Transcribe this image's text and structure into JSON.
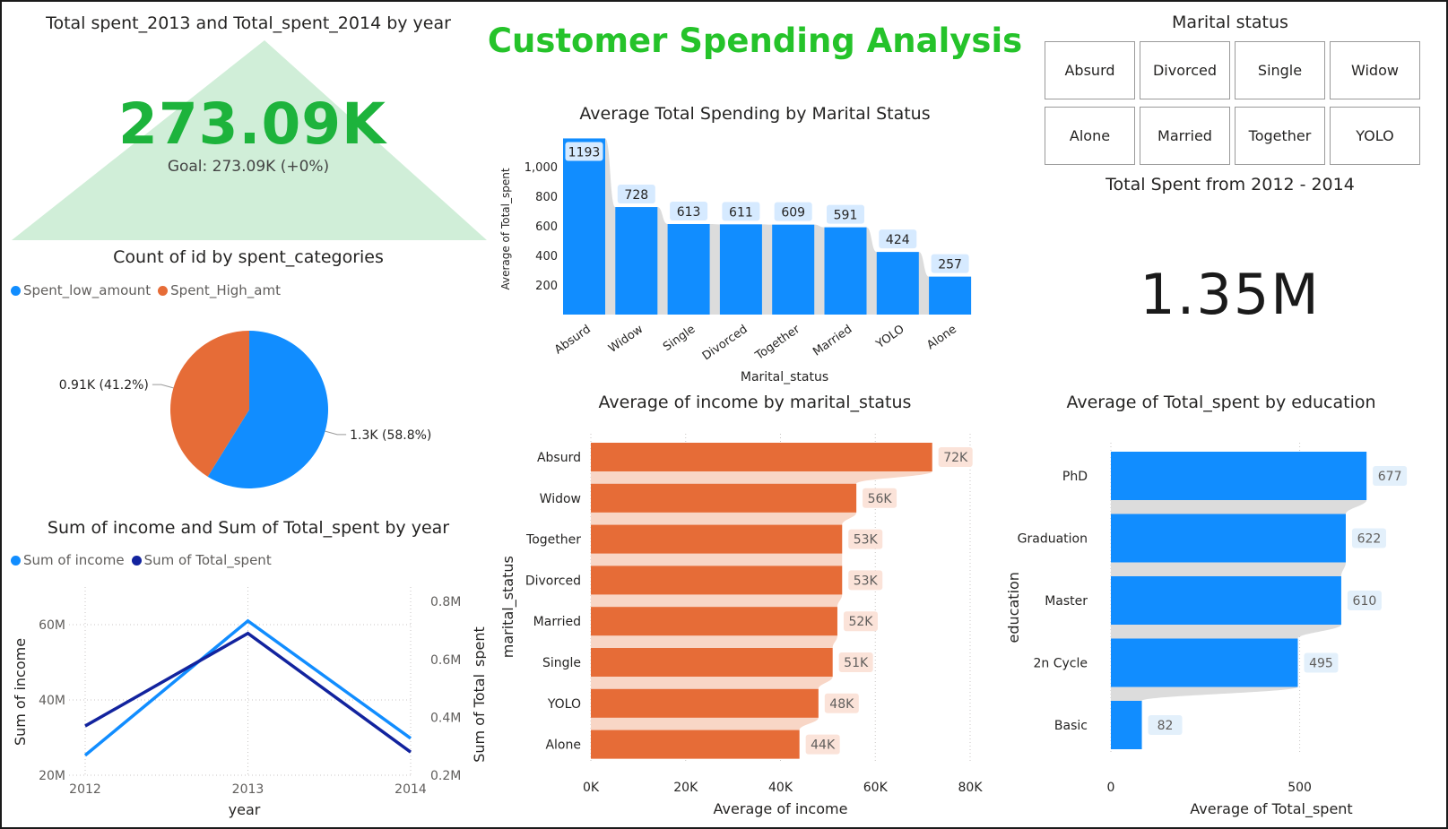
{
  "title": "Customer Spending Analysis",
  "kpi_goal": {
    "title": "Total spent_2013 and Total_spent_2014 by year",
    "value": "273.09K",
    "check": "✓",
    "goal": "Goal: 273.09K (+0%)"
  },
  "kpi_total": {
    "title": "Total Spent from 2012 - 2014",
    "value": "1.35M"
  },
  "slicer": {
    "title": "Marital status",
    "options": [
      "Absurd",
      "Divorced",
      "Single",
      "Widow",
      "Alone",
      "Married",
      "Together",
      "YOLO"
    ]
  },
  "colors": {
    "blue": "#118dff",
    "orange": "#e66c37",
    "dark_navy": "#12239e",
    "green": "#25c32a",
    "kpi_fill": "#d0eed8"
  },
  "chart_data": [
    {
      "id": "pie",
      "type": "pie",
      "title": "Count of id by spent_categories",
      "legend_position": "top-left",
      "series": [
        {
          "name": "Spent_low_amount",
          "value": 1.3,
          "label": "1.3K (58.8%)",
          "color": "#118dff"
        },
        {
          "name": "Spent_High_amt",
          "value": 0.91,
          "label": "0.91K (41.2%)",
          "color": "#e66c37"
        }
      ]
    },
    {
      "id": "line",
      "type": "line",
      "title": "Sum of income and Sum of Total_spent by year",
      "xlabel": "year",
      "ylabel": "Sum of income",
      "y2label": "Sum of Total_spent",
      "x": [
        2012,
        2013,
        2014
      ],
      "xticks": [
        "2012",
        "2013",
        "2014"
      ],
      "ylim": [
        20,
        70
      ],
      "yticks": [
        "20M",
        "40M",
        "60M"
      ],
      "ytick_values": [
        20,
        40,
        60
      ],
      "y2lim": [
        0.2,
        0.85
      ],
      "y2ticks": [
        "0.2M",
        "0.4M",
        "0.6M",
        "0.8M"
      ],
      "y2tick_values": [
        0.2,
        0.4,
        0.6,
        0.8
      ],
      "legend_position": "top-left",
      "grid": true,
      "series": [
        {
          "name": "Sum of income",
          "axis": "left",
          "values": [
            25.3,
            61.0,
            29.8
          ],
          "color": "#118dff"
        },
        {
          "name": "Sum of Total_spent",
          "axis": "right",
          "values": [
            0.37,
            0.69,
            0.28
          ],
          "color": "#12239e"
        }
      ]
    },
    {
      "id": "bar",
      "type": "bar",
      "title": "Average Total Spending by Marital Status",
      "xlabel": "Marital_status",
      "ylabel": "Average of Total_spent",
      "categories": [
        "Absurd",
        "Widow",
        "Single",
        "Divorced",
        "Together",
        "Married",
        "YOLO",
        "Alone"
      ],
      "values": [
        1193,
        728,
        613,
        611,
        609,
        591,
        424,
        257
      ],
      "ylim": [
        0,
        1220
      ],
      "yticks": [
        "200",
        "400",
        "600",
        "800",
        "1,000"
      ],
      "ytick_values": [
        200,
        400,
        600,
        800,
        1000
      ],
      "grid": false
    },
    {
      "id": "hbar_income",
      "type": "bar",
      "orientation": "horizontal",
      "title": "Average of income by marital_status",
      "xlabel": "Average of income",
      "ylabel": "marital_status",
      "categories": [
        "Absurd",
        "Widow",
        "Together",
        "Divorced",
        "Married",
        "Single",
        "YOLO",
        "Alone"
      ],
      "values": [
        72,
        56,
        53,
        53,
        52,
        51,
        48,
        44
      ],
      "labels": [
        "72K",
        "56K",
        "53K",
        "53K",
        "52K",
        "51K",
        "48K",
        "44K"
      ],
      "xlim": [
        0,
        80
      ],
      "xticks": [
        "0K",
        "20K",
        "40K",
        "60K",
        "80K"
      ],
      "xtick_values": [
        0,
        20,
        40,
        60,
        80
      ],
      "grid": true
    },
    {
      "id": "hbar_edu",
      "type": "bar",
      "orientation": "horizontal",
      "title": "Average of Total_spent by education",
      "xlabel": "Average of Total_spent",
      "ylabel": "education",
      "categories": [
        "PhD",
        "Graduation",
        "Master",
        "2n Cycle",
        "Basic"
      ],
      "values": [
        677,
        622,
        610,
        495,
        82
      ],
      "xlim": [
        0,
        850
      ],
      "xticks": [
        "0",
        "500"
      ],
      "xtick_values": [
        0,
        500
      ],
      "grid": true
    }
  ]
}
